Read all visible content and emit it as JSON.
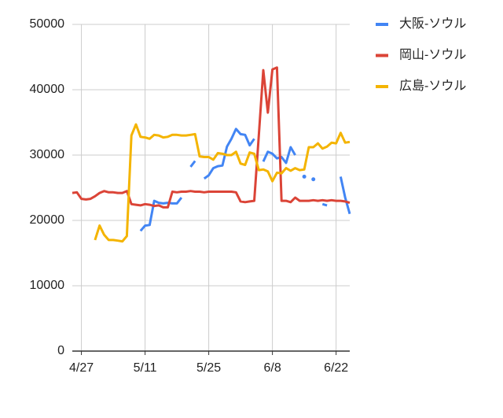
{
  "chart_data": {
    "type": "line",
    "categories": [
      null,
      null,
      "4/27",
      null,
      null,
      null,
      null,
      null,
      null,
      null,
      null,
      null,
      null,
      null,
      null,
      null,
      "5/11",
      null,
      null,
      null,
      null,
      null,
      null,
      null,
      null,
      null,
      null,
      null,
      null,
      null,
      "5/25",
      null,
      null,
      null,
      null,
      null,
      null,
      null,
      null,
      null,
      null,
      null,
      null,
      null,
      "6/8",
      null,
      null,
      null,
      null,
      null,
      null,
      null,
      null,
      null,
      null,
      null,
      null,
      null,
      "6/22",
      null,
      null,
      null
    ],
    "series": [
      {
        "name": "大阪-ソウル",
        "color": "#4285f4",
        "values": [
          null,
          null,
          null,
          null,
          null,
          null,
          null,
          null,
          null,
          null,
          null,
          null,
          null,
          null,
          null,
          18400,
          19200,
          19300,
          23000,
          22700,
          22600,
          22700,
          22600,
          22600,
          23500,
          null,
          28200,
          29100,
          null,
          26400,
          26900,
          28000,
          28300,
          28400,
          31300,
          32500,
          34000,
          33200,
          33100,
          31500,
          32500,
          null,
          29000,
          30500,
          30200,
          29500,
          29700,
          28800,
          31200,
          30000,
          null,
          26700,
          null,
          26300,
          null,
          22500,
          22300,
          null,
          null,
          26700,
          23500,
          21000
        ]
      },
      {
        "name": "岡山-ソウル",
        "color": "#db4437",
        "values": [
          24200,
          24300,
          23300,
          23200,
          23300,
          23700,
          24200,
          24500,
          24300,
          24300,
          24200,
          24200,
          24500,
          22500,
          22400,
          22300,
          22500,
          22400,
          22200,
          22300,
          22000,
          22000,
          24400,
          24300,
          24400,
          24400,
          24500,
          24400,
          24400,
          24300,
          24400,
          24400,
          24400,
          24400,
          24400,
          24400,
          24300,
          22900,
          22800,
          22900,
          23000,
          33000,
          43000,
          36500,
          43100,
          43400,
          23000,
          23000,
          22800,
          23500,
          23000,
          23000,
          23000,
          23100,
          23000,
          23100,
          23000,
          23100,
          23000,
          23000,
          22900,
          22700
        ]
      },
      {
        "name": "広島-ソウル",
        "color": "#f4b400",
        "values": [
          null,
          null,
          null,
          null,
          null,
          17000,
          19200,
          17800,
          17000,
          17000,
          16900,
          16800,
          17600,
          33000,
          34700,
          32800,
          32700,
          32500,
          33100,
          33000,
          32700,
          32800,
          33100,
          33100,
          33000,
          33000,
          33100,
          33200,
          29800,
          29700,
          29700,
          29300,
          30300,
          30200,
          30000,
          30000,
          30500,
          28700,
          28500,
          30400,
          30200,
          27700,
          27800,
          27500,
          26000,
          27300,
          27200,
          28000,
          27600,
          28000,
          27700,
          27800,
          31200,
          31200,
          31800,
          31000,
          31300,
          31900,
          31800,
          33400,
          31900,
          32000
        ]
      }
    ],
    "ylim": [
      0,
      50000
    ],
    "yticks": [
      0,
      10000,
      20000,
      30000,
      40000,
      50000
    ],
    "grid": true,
    "legend": "right"
  }
}
